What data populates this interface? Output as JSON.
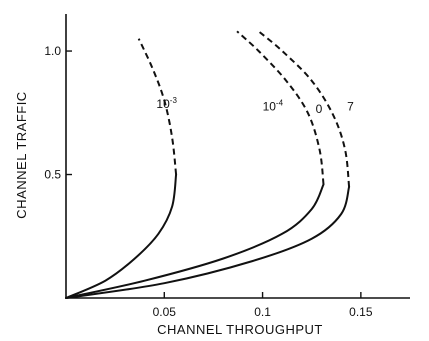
{
  "chart_data": {
    "type": "line",
    "title": "",
    "xlabel": "CHANNEL THROUGHPUT",
    "ylabel": "CHANNEL TRAFFIC",
    "xlim": [
      0,
      0.175
    ],
    "ylim": [
      0,
      1.15
    ],
    "x_ticks": [
      {
        "value": 0.05,
        "label": "0.05"
      },
      {
        "value": 0.1,
        "label": "0.1"
      },
      {
        "value": 0.15,
        "label": "0.15"
      }
    ],
    "y_ticks": [
      {
        "value": 0.5,
        "label": "0.5"
      },
      {
        "value": 1.0,
        "label": "1.0"
      }
    ],
    "grid": false,
    "legend": "none",
    "series": [
      {
        "label_base": "10",
        "label_exp": "-3",
        "label_x": 0.046,
        "label_y": 0.77,
        "solid": [
          [
            0,
            0
          ],
          [
            0.02,
            0.07
          ],
          [
            0.035,
            0.16
          ],
          [
            0.047,
            0.26
          ],
          [
            0.054,
            0.37
          ],
          [
            0.056,
            0.5
          ]
        ],
        "dashed": [
          [
            0.056,
            0.5
          ],
          [
            0.054,
            0.65
          ],
          [
            0.05,
            0.8
          ],
          [
            0.044,
            0.93
          ],
          [
            0.037,
            1.05
          ]
        ]
      },
      {
        "label_base": "10",
        "label_exp": "-4",
        "label_x": 0.1,
        "label_y": 0.76,
        "solid": [
          [
            0,
            0
          ],
          [
            0.04,
            0.07
          ],
          [
            0.08,
            0.16
          ],
          [
            0.11,
            0.26
          ],
          [
            0.125,
            0.36
          ],
          [
            0.131,
            0.46
          ]
        ],
        "dashed": [
          [
            0.131,
            0.46
          ],
          [
            0.129,
            0.6
          ],
          [
            0.123,
            0.75
          ],
          [
            0.112,
            0.88
          ],
          [
            0.098,
            1.0
          ],
          [
            0.087,
            1.08
          ]
        ]
      },
      {
        "label_base": "0",
        "label_exp": "",
        "label_x": 0.127,
        "label_y": 0.75,
        "solid": [
          [
            0,
            0
          ],
          [
            0.05,
            0.06
          ],
          [
            0.095,
            0.15
          ],
          [
            0.125,
            0.24
          ],
          [
            0.14,
            0.34
          ],
          [
            0.144,
            0.45
          ]
        ],
        "dashed": [
          [
            0.144,
            0.45
          ],
          [
            0.142,
            0.6
          ],
          [
            0.136,
            0.74
          ],
          [
            0.125,
            0.88
          ],
          [
            0.11,
            1.0
          ],
          [
            0.098,
            1.08
          ]
        ]
      }
    ],
    "annotations": [
      {
        "text": "7",
        "x": 0.143,
        "y": 0.76
      }
    ]
  }
}
